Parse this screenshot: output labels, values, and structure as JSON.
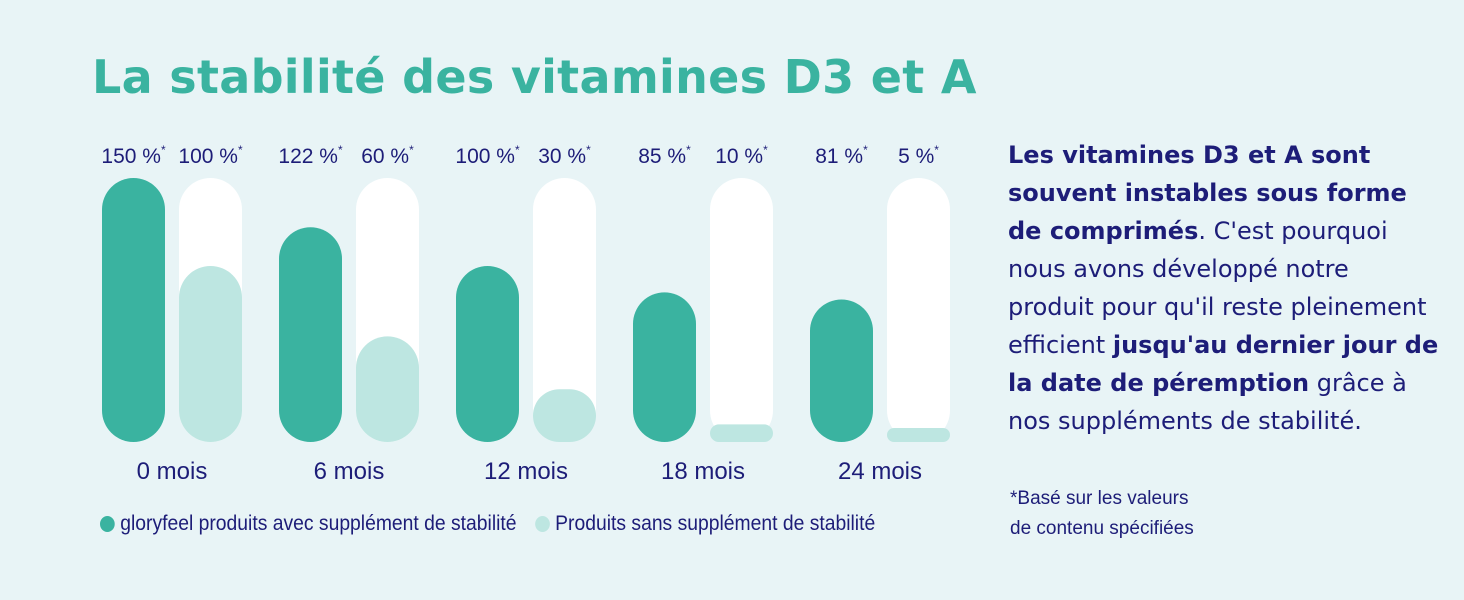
{
  "title": "La stabilité des vitamines D3 et A",
  "colors": {
    "with": "#3ab3a0",
    "without": "#bde6e1",
    "track": "#ffffff",
    "text": "#1d1d78",
    "title": "#3ab3a0"
  },
  "chart_data": {
    "type": "bar",
    "title": "La stabilité des vitamines D3 et A",
    "categories": [
      "0 mois",
      "6 mois",
      "12 mois",
      "18 mois",
      "24 mois"
    ],
    "series": [
      {
        "name": "gloryfeel produits avec supplément de stabilité",
        "values": [
          150,
          122,
          100,
          85,
          81
        ],
        "labels": [
          "150 %",
          "122 %",
          "100 %",
          "85 %",
          "81 %"
        ]
      },
      {
        "name": "Produits sans supplément de stabilité",
        "values": [
          100,
          60,
          30,
          10,
          5
        ],
        "labels": [
          "100 %",
          "60 %",
          "30 %",
          "10 %",
          "5 %"
        ]
      }
    ],
    "label_suffix": "*",
    "ylim": [
      0,
      150
    ],
    "xlabel": "",
    "ylabel": "",
    "grid": false,
    "legend_position": "bottom"
  },
  "side": {
    "bold1": "Les vitamines D3 et A sont souvent instables sous forme de comprimés",
    "text1": ". C'est pourquoi nous avons développé notre produit pour qu'il reste pleinement efficient ",
    "bold2": "jusqu'au dernier jour de la date de péremption",
    "text2": " grâce à nos suppléments de stabilité."
  },
  "footnote": {
    "line1": "*Basé sur les valeurs",
    "line2": "de contenu spécifiées"
  }
}
